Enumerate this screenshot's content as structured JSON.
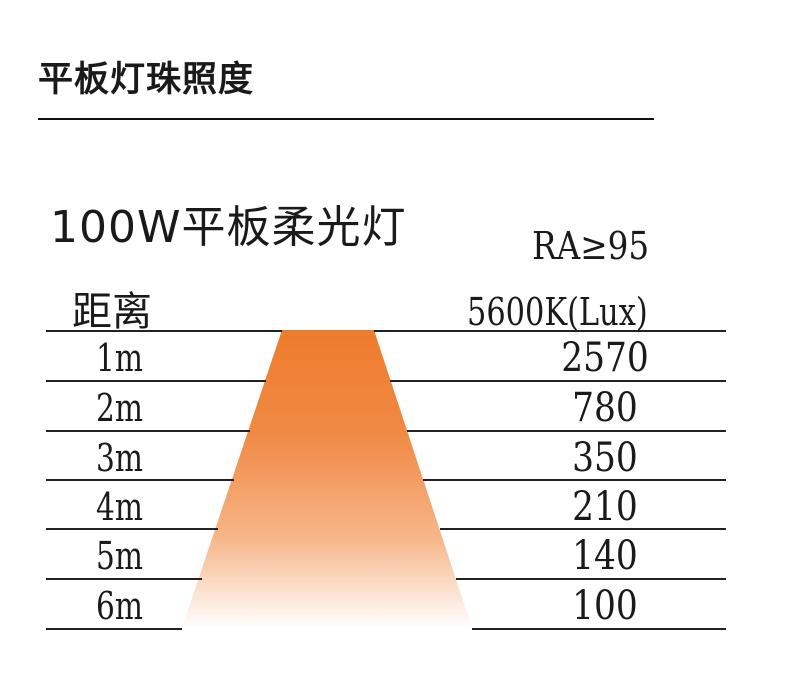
{
  "header": {
    "title": "平板灯珠照度"
  },
  "product": {
    "title": "100W平板柔光灯",
    "ra": "RA≥95"
  },
  "table": {
    "left_header": "距离",
    "right_header": "5600K(Lux)",
    "rows": [
      {
        "distance": "1m",
        "lux": "2570"
      },
      {
        "distance": "2m",
        "lux": "780"
      },
      {
        "distance": "3m",
        "lux": "350"
      },
      {
        "distance": "4m",
        "lux": "210"
      },
      {
        "distance": "5m",
        "lux": "140"
      },
      {
        "distance": "6m",
        "lux": "100"
      }
    ]
  },
  "colors": {
    "beam_top": "#ee7b2c",
    "beam_bottom": "#ffffff",
    "text": "#1a1a1a",
    "rule": "#222222"
  }
}
